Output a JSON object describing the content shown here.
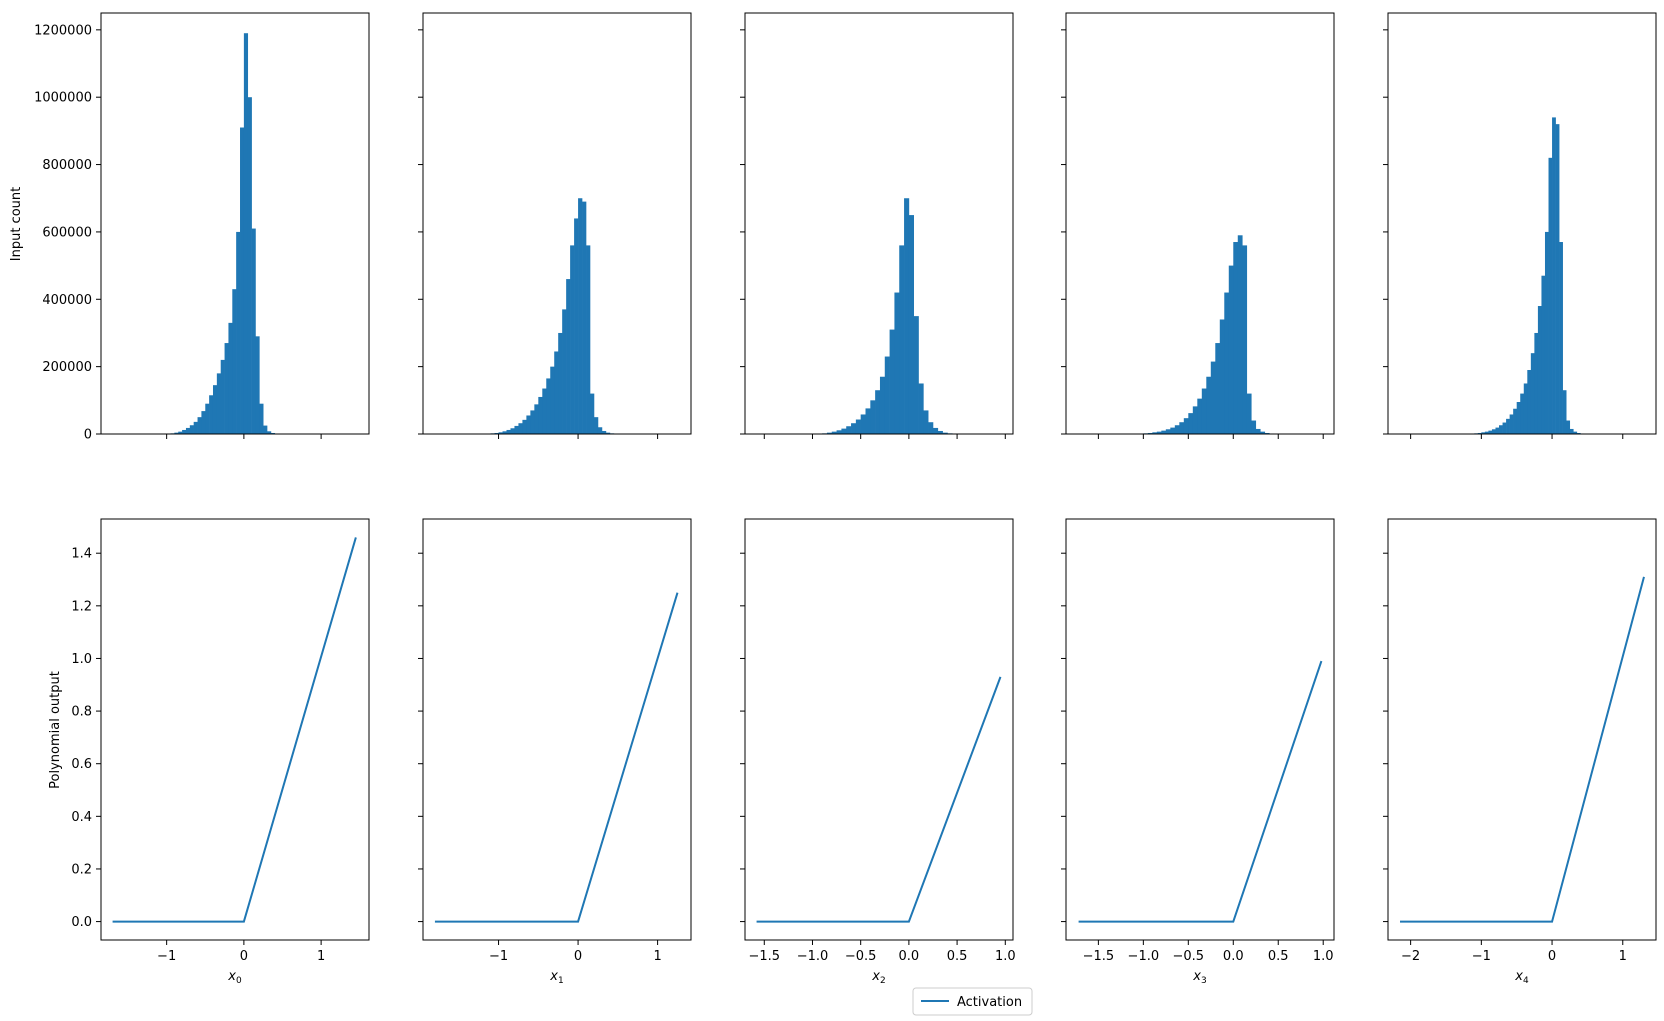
{
  "figure": {
    "legend_label": "Activation",
    "hist_ylabel": "Input count",
    "line_ylabel": "Polynomial output",
    "bar_color": "#1f77b4",
    "line_color": "#1f77b4"
  },
  "chart_data": [
    {
      "type": "bar",
      "panel": "hist-0",
      "ylabel": "Input count",
      "xlim": [
        -1.85,
        1.62
      ],
      "ylim": [
        0,
        1250000
      ],
      "xticks": [
        -1,
        0,
        1
      ],
      "yticks": [
        0,
        200000,
        400000,
        600000,
        800000,
        1000000,
        1200000
      ],
      "bin_width": 0.05,
      "bins_start": [
        -1.0,
        -0.95,
        -0.9,
        -0.85,
        -0.8,
        -0.75,
        -0.7,
        -0.65,
        -0.6,
        -0.55,
        -0.5,
        -0.45,
        -0.4,
        -0.35,
        -0.3,
        -0.25,
        -0.2,
        -0.15,
        -0.1,
        -0.05,
        0.0,
        0.05,
        0.1,
        0.15,
        0.2,
        0.25,
        0.3,
        0.35,
        0.4
      ],
      "values": [
        1000,
        2000,
        4000,
        7000,
        12000,
        18000,
        26000,
        36000,
        50000,
        68000,
        90000,
        115000,
        145000,
        180000,
        220000,
        270000,
        330000,
        430000,
        600000,
        910000,
        1190000,
        1000000,
        610000,
        290000,
        90000,
        25000,
        8000,
        3000,
        1000
      ]
    },
    {
      "type": "bar",
      "panel": "hist-1",
      "xlim": [
        -1.95,
        1.42
      ],
      "ylim": [
        0,
        1250000
      ],
      "xticks": [
        -1,
        0,
        1
      ],
      "yticks": [
        0,
        200000,
        400000,
        600000,
        800000,
        1000000,
        1200000
      ],
      "bin_width": 0.05,
      "bins_start": [
        -1.15,
        -1.1,
        -1.05,
        -1.0,
        -0.95,
        -0.9,
        -0.85,
        -0.8,
        -0.75,
        -0.7,
        -0.65,
        -0.6,
        -0.55,
        -0.5,
        -0.45,
        -0.4,
        -0.35,
        -0.3,
        -0.25,
        -0.2,
        -0.15,
        -0.1,
        -0.05,
        0.0,
        0.05,
        0.1,
        0.15,
        0.2,
        0.25,
        0.3,
        0.35,
        0.4,
        0.45
      ],
      "values": [
        1000,
        2000,
        3000,
        5000,
        8000,
        12000,
        17000,
        24000,
        32000,
        42000,
        55000,
        70000,
        88000,
        110000,
        135000,
        165000,
        200000,
        245000,
        300000,
        370000,
        460000,
        560000,
        640000,
        700000,
        690000,
        560000,
        120000,
        50000,
        20000,
        9000,
        4000,
        2000,
        1000
      ]
    },
    {
      "type": "bar",
      "panel": "hist-2",
      "xlim": [
        -1.7,
        1.08
      ],
      "ylim": [
        0,
        1250000
      ],
      "xticks": [
        -1.5,
        -1.0,
        -0.5,
        0.0,
        0.5,
        1.0
      ],
      "xticklabels": [
        "−1.5",
        "−1.0",
        "−0.5",
        "0.0",
        "0.5",
        "1.0"
      ],
      "yticks": [
        0,
        200000,
        400000,
        600000,
        800000,
        1000000,
        1200000
      ],
      "bin_width": 0.05,
      "bins_start": [
        -0.9,
        -0.85,
        -0.8,
        -0.75,
        -0.7,
        -0.65,
        -0.6,
        -0.55,
        -0.5,
        -0.45,
        -0.4,
        -0.35,
        -0.3,
        -0.25,
        -0.2,
        -0.15,
        -0.1,
        -0.05,
        0.0,
        0.05,
        0.1,
        0.15,
        0.2,
        0.25,
        0.3,
        0.35,
        0.4
      ],
      "values": [
        2000,
        4000,
        7000,
        11000,
        16000,
        23000,
        32000,
        43000,
        58000,
        76000,
        100000,
        130000,
        170000,
        230000,
        310000,
        420000,
        560000,
        700000,
        650000,
        350000,
        150000,
        70000,
        35000,
        18000,
        9000,
        4000,
        2000
      ]
    },
    {
      "type": "bar",
      "panel": "hist-3",
      "xlim": [
        -1.86,
        1.12
      ],
      "ylim": [
        0,
        1250000
      ],
      "xticks": [
        -1.5,
        -1.0,
        -0.5,
        0.0,
        0.5,
        1.0
      ],
      "xticklabels": [
        "−1.5",
        "−1.0",
        "−0.5",
        "0.0",
        "0.5",
        "1.0"
      ],
      "yticks": [
        0,
        200000,
        400000,
        600000,
        800000,
        1000000,
        1200000
      ],
      "bin_width": 0.05,
      "bins_start": [
        -1.05,
        -1.0,
        -0.95,
        -0.9,
        -0.85,
        -0.8,
        -0.75,
        -0.7,
        -0.65,
        -0.6,
        -0.55,
        -0.5,
        -0.45,
        -0.4,
        -0.35,
        -0.3,
        -0.25,
        -0.2,
        -0.15,
        -0.1,
        -0.05,
        0.0,
        0.05,
        0.1,
        0.15,
        0.2,
        0.25,
        0.3,
        0.35,
        0.4,
        0.45
      ],
      "values": [
        1000,
        2000,
        3000,
        5000,
        7000,
        10000,
        14000,
        19000,
        26000,
        35000,
        47000,
        62000,
        82000,
        105000,
        135000,
        170000,
        215000,
        270000,
        340000,
        420000,
        500000,
        570000,
        590000,
        560000,
        120000,
        40000,
        15000,
        7000,
        3000,
        1500,
        700
      ]
    },
    {
      "type": "bar",
      "panel": "hist-4",
      "xlim": [
        -2.32,
        1.47
      ],
      "ylim": [
        0,
        1250000
      ],
      "xticks": [
        -2,
        -1,
        0,
        1
      ],
      "xticklabels": [
        "−2",
        "−1",
        "0",
        "1"
      ],
      "yticks": [
        0,
        200000,
        400000,
        600000,
        800000,
        1000000,
        1200000
      ],
      "bin_width": 0.05,
      "bins_start": [
        -1.15,
        -1.1,
        -1.05,
        -1.0,
        -0.95,
        -0.9,
        -0.85,
        -0.8,
        -0.75,
        -0.7,
        -0.65,
        -0.6,
        -0.55,
        -0.5,
        -0.45,
        -0.4,
        -0.35,
        -0.3,
        -0.25,
        -0.2,
        -0.15,
        -0.1,
        -0.05,
        0.0,
        0.05,
        0.1,
        0.15,
        0.2,
        0.25,
        0.3,
        0.35,
        0.4,
        0.45,
        0.5
      ],
      "values": [
        1000,
        2000,
        3000,
        5000,
        7000,
        10000,
        14000,
        19000,
        26000,
        34000,
        45000,
        58000,
        75000,
        95000,
        120000,
        150000,
        190000,
        240000,
        300000,
        380000,
        470000,
        600000,
        820000,
        940000,
        920000,
        570000,
        130000,
        40000,
        15000,
        7000,
        3000,
        1500,
        700,
        300
      ]
    },
    {
      "type": "line",
      "panel": "line-0",
      "xlabel": "x0",
      "ylabel": "Polynomial output",
      "xlim": [
        -1.85,
        1.62
      ],
      "ylim": [
        -0.07,
        1.53
      ],
      "xticks": [
        -1,
        0,
        1
      ],
      "xticklabels": [
        "−1",
        "0",
        "1"
      ],
      "yticks": [
        0.0,
        0.2,
        0.4,
        0.6,
        0.8,
        1.0,
        1.2,
        1.4
      ],
      "yticklabels": [
        "0.0",
        "0.2",
        "0.4",
        "0.6",
        "0.8",
        "1.0",
        "1.2",
        "1.4"
      ],
      "series": [
        {
          "name": "Activation",
          "x": [
            -1.7,
            0.0,
            1.45
          ],
          "y": [
            0.0,
            0.0,
            1.46
          ]
        }
      ]
    },
    {
      "type": "line",
      "panel": "line-1",
      "xlabel": "x1",
      "xlim": [
        -1.95,
        1.42
      ],
      "ylim": [
        -0.07,
        1.53
      ],
      "xticks": [
        -1,
        0,
        1
      ],
      "xticklabels": [
        "−1",
        "0",
        "1"
      ],
      "yticks": [
        0.0,
        0.2,
        0.4,
        0.6,
        0.8,
        1.0,
        1.2,
        1.4
      ],
      "series": [
        {
          "name": "Activation",
          "x": [
            -1.8,
            0.0,
            1.25
          ],
          "y": [
            0.0,
            0.0,
            1.25
          ]
        }
      ]
    },
    {
      "type": "line",
      "panel": "line-2",
      "xlabel": "x2",
      "xlim": [
        -1.7,
        1.08
      ],
      "ylim": [
        -0.07,
        1.53
      ],
      "xticks": [
        -1.5,
        -1.0,
        -0.5,
        0.0,
        0.5,
        1.0
      ],
      "xticklabels": [
        "−1.5",
        "−1.0",
        "−0.5",
        "0.0",
        "0.5",
        "1.0"
      ],
      "yticks": [
        0.0,
        0.2,
        0.4,
        0.6,
        0.8,
        1.0,
        1.2,
        1.4
      ],
      "series": [
        {
          "name": "Activation",
          "x": [
            -1.58,
            0.0,
            0.95
          ],
          "y": [
            0.0,
            0.0,
            0.93
          ]
        }
      ]
    },
    {
      "type": "line",
      "panel": "line-3",
      "xlabel": "x3",
      "xlim": [
        -1.86,
        1.12
      ],
      "ylim": [
        -0.07,
        1.53
      ],
      "xticks": [
        -1.5,
        -1.0,
        -0.5,
        0.0,
        0.5,
        1.0
      ],
      "xticklabels": [
        "−1.5",
        "−1.0",
        "−0.5",
        "0.0",
        "0.5",
        "1.0"
      ],
      "yticks": [
        0.0,
        0.2,
        0.4,
        0.6,
        0.8,
        1.0,
        1.2,
        1.4
      ],
      "series": [
        {
          "name": "Activation",
          "x": [
            -1.72,
            0.0,
            0.98
          ],
          "y": [
            0.0,
            0.0,
            0.99
          ]
        }
      ]
    },
    {
      "type": "line",
      "panel": "line-4",
      "xlabel": "x4",
      "xlim": [
        -2.32,
        1.47
      ],
      "ylim": [
        -0.07,
        1.53
      ],
      "xticks": [
        -2,
        -1,
        0,
        1
      ],
      "xticklabels": [
        "−2",
        "−1",
        "0",
        "1"
      ],
      "yticks": [
        0.0,
        0.2,
        0.4,
        0.6,
        0.8,
        1.0,
        1.2,
        1.4
      ],
      "series": [
        {
          "name": "Activation",
          "x": [
            -2.15,
            0.0,
            1.3
          ],
          "y": [
            0.0,
            0.0,
            1.31
          ]
        }
      ]
    }
  ]
}
